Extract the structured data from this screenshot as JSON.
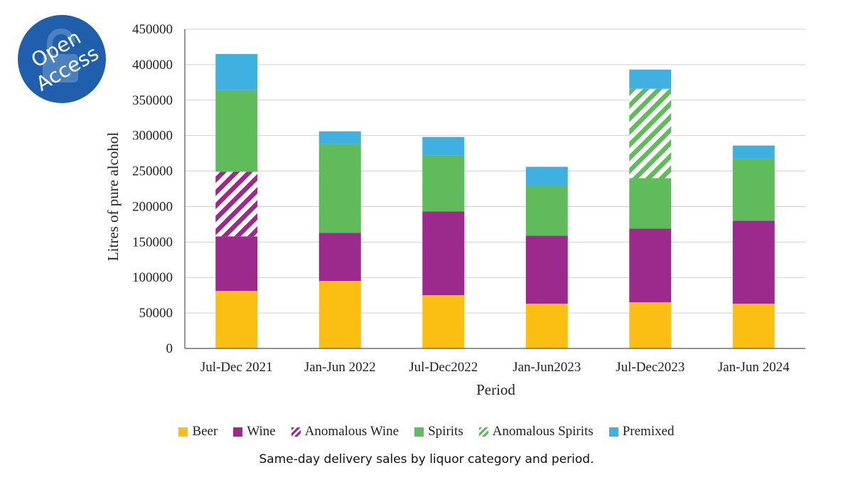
{
  "badge": {
    "line1": "Open",
    "line2": "Access"
  },
  "caption": "Same-day delivery sales by liquor category and period.",
  "colors": {
    "beer": "#fbbf14",
    "wine": "#9c2a8c",
    "spirits": "#60bb5a",
    "premixed": "#3fb0e0",
    "grid": "#d0d0d0",
    "axis": "#555555",
    "badge": "#1f5fab"
  },
  "chart_data": {
    "type": "bar",
    "stacked": true,
    "title": "",
    "xlabel": "Period",
    "ylabel": "Litres of pure alcohol",
    "ylim": [
      0,
      450000
    ],
    "yticks": [
      "0",
      "50000",
      "100000",
      "150000",
      "200000",
      "250000",
      "300000",
      "350000",
      "400000",
      "450000"
    ],
    "categories": [
      "Jul-Dec 2021",
      "Jan-Jun 2022",
      "Jul-Dec2022",
      "Jan-Jun2023",
      "Jul-Dec2023",
      "Jan-Jun 2024"
    ],
    "series": [
      {
        "name": "Beer",
        "key": "beer",
        "pattern": false,
        "values": [
          81000,
          95000,
          75000,
          63000,
          65000,
          63000
        ]
      },
      {
        "name": "Wine",
        "key": "wine",
        "pattern": false,
        "values": [
          77000,
          68000,
          118000,
          96000,
          104000,
          117000
        ]
      },
      {
        "name": "Anomalous Wine",
        "key": "wine",
        "pattern": true,
        "values": [
          91000,
          0,
          0,
          0,
          0,
          0
        ]
      },
      {
        "name": "Spirits",
        "key": "spirits",
        "pattern": false,
        "values": [
          115000,
          125000,
          79000,
          70000,
          71000,
          87000
        ]
      },
      {
        "name": "Anomalous Spirits",
        "key": "spirits",
        "pattern": true,
        "values": [
          0,
          0,
          0,
          0,
          126000,
          0
        ]
      },
      {
        "name": "Premixed",
        "key": "premixed",
        "pattern": false,
        "values": [
          51000,
          18000,
          26000,
          27000,
          27000,
          19000
        ]
      }
    ]
  }
}
